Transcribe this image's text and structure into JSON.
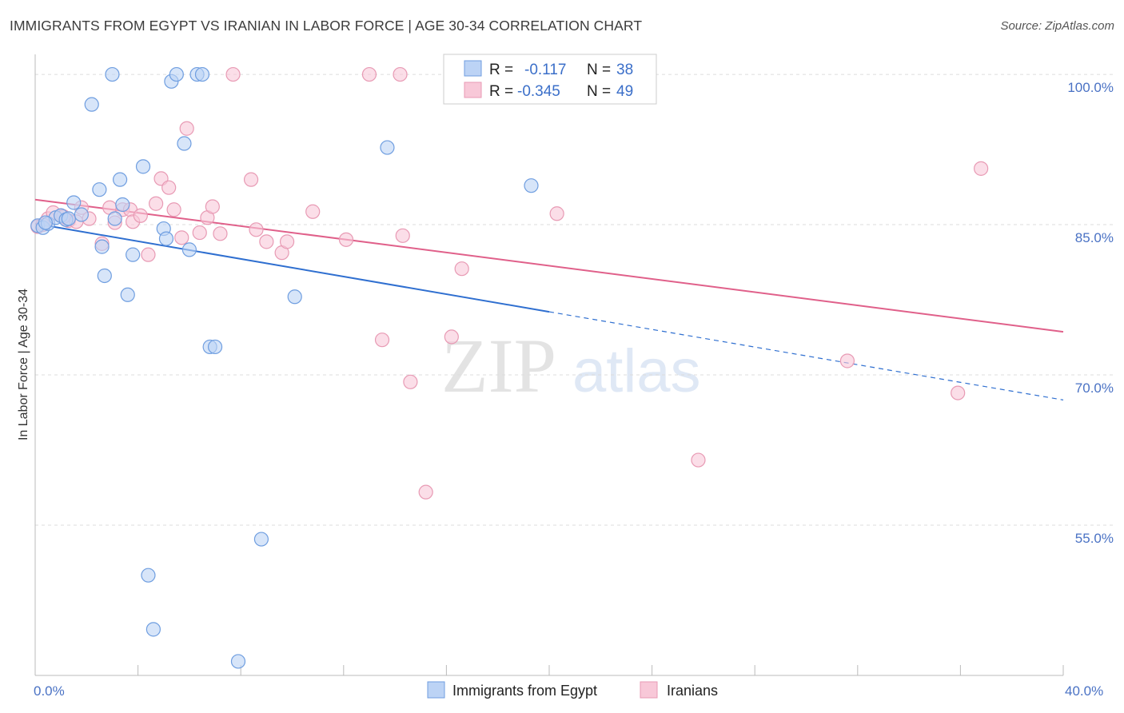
{
  "title": "IMMIGRANTS FROM EGYPT VS IRANIAN IN LABOR FORCE | AGE 30-34 CORRELATION CHART",
  "source": "Source: ZipAtlas.com",
  "watermark": {
    "zip": "ZIP",
    "atlas": "atlas"
  },
  "colors": {
    "egypt_fill": "#bcd3f5",
    "egypt_stroke": "#6f9ee0",
    "egypt_line": "#2f6fd0",
    "iran_fill": "#f8c8d8",
    "iran_stroke": "#e89ab4",
    "iran_line": "#e0608a",
    "grid": "#dcdcdc",
    "tick_label": "#4a72c4"
  },
  "legend": {
    "rows": [
      {
        "r_label": "R = ",
        "r_value": "-0.117",
        "n_label": "N = ",
        "n_value": "38"
      },
      {
        "r_label": "R = ",
        "r_value": "-0.345",
        "n_label": "N = ",
        "n_value": "49"
      }
    ]
  },
  "chart_data": {
    "type": "scatter",
    "title": "IMMIGRANTS FROM EGYPT VS IRANIAN IN LABOR FORCE | AGE 30-34 CORRELATION CHART",
    "xlabel": "",
    "ylabel": "In Labor Force | Age 30-34",
    "xlim": [
      0,
      40
    ],
    "ylim": [
      40,
      102
    ],
    "x_tick_labels": [
      "0.0%",
      "40.0%"
    ],
    "y_ticks": [
      100,
      85,
      70,
      55
    ],
    "y_tick_labels": [
      "100.0%",
      "85.0%",
      "70.0%",
      "55.0%"
    ],
    "legend_position": "top-center",
    "series": [
      {
        "name": "Immigrants from Egypt",
        "r": -0.117,
        "n": 38,
        "trend": {
          "x0": 0,
          "y0": 85.1,
          "x_solid_end": 20,
          "x1": 40,
          "y1": 67.5
        },
        "points": [
          [
            0.1,
            84.9
          ],
          [
            0.3,
            84.7
          ],
          [
            0.5,
            85.1
          ],
          [
            0.8,
            85.7
          ],
          [
            1.0,
            85.9
          ],
          [
            1.2,
            85.5
          ],
          [
            1.5,
            87.2
          ],
          [
            1.8,
            86.0
          ],
          [
            2.2,
            97.0
          ],
          [
            2.5,
            88.5
          ],
          [
            2.6,
            82.8
          ],
          [
            2.7,
            79.9
          ],
          [
            3.0,
            100.0
          ],
          [
            3.1,
            85.6
          ],
          [
            3.3,
            89.5
          ],
          [
            3.4,
            87.0
          ],
          [
            3.6,
            78.0
          ],
          [
            3.8,
            82.0
          ],
          [
            4.2,
            90.8
          ],
          [
            4.4,
            50.0
          ],
          [
            4.6,
            44.6
          ],
          [
            5.0,
            84.6
          ],
          [
            5.1,
            83.6
          ],
          [
            5.3,
            99.3
          ],
          [
            5.5,
            100.0
          ],
          [
            5.8,
            93.1
          ],
          [
            6.0,
            82.5
          ],
          [
            6.3,
            100.0
          ],
          [
            6.5,
            100.0
          ],
          [
            6.8,
            72.8
          ],
          [
            7.0,
            72.8
          ],
          [
            7.9,
            41.4
          ],
          [
            8.8,
            53.6
          ],
          [
            10.1,
            77.8
          ],
          [
            13.7,
            92.7
          ],
          [
            19.3,
            88.9
          ],
          [
            0.4,
            85.2
          ],
          [
            1.3,
            85.6
          ]
        ]
      },
      {
        "name": "Iranians",
        "r": -0.345,
        "n": 49,
        "trend": {
          "x0": 0,
          "y0": 87.5,
          "x1": 40,
          "y1": 74.3
        },
        "points": [
          [
            0.1,
            84.8
          ],
          [
            0.5,
            85.6
          ],
          [
            0.7,
            86.2
          ],
          [
            1.0,
            85.9
          ],
          [
            1.3,
            85.4
          ],
          [
            1.6,
            85.3
          ],
          [
            1.8,
            86.7
          ],
          [
            2.1,
            85.6
          ],
          [
            2.6,
            83.1
          ],
          [
            2.9,
            86.7
          ],
          [
            3.1,
            85.2
          ],
          [
            3.4,
            86.5
          ],
          [
            3.7,
            86.5
          ],
          [
            3.8,
            85.3
          ],
          [
            4.1,
            85.9
          ],
          [
            4.4,
            82.0
          ],
          [
            4.7,
            87.1
          ],
          [
            4.9,
            89.6
          ],
          [
            5.2,
            88.7
          ],
          [
            5.4,
            86.5
          ],
          [
            5.7,
            83.7
          ],
          [
            5.9,
            94.6
          ],
          [
            6.4,
            84.2
          ],
          [
            6.7,
            85.7
          ],
          [
            6.9,
            86.8
          ],
          [
            7.2,
            84.1
          ],
          [
            7.7,
            100.0
          ],
          [
            8.4,
            89.5
          ],
          [
            8.6,
            84.5
          ],
          [
            9.0,
            83.3
          ],
          [
            9.6,
            82.2
          ],
          [
            9.8,
            83.3
          ],
          [
            10.8,
            86.3
          ],
          [
            12.1,
            83.5
          ],
          [
            13.0,
            100.0
          ],
          [
            13.5,
            73.5
          ],
          [
            14.2,
            100.0
          ],
          [
            14.3,
            83.9
          ],
          [
            14.6,
            69.3
          ],
          [
            15.2,
            58.3
          ],
          [
            16.2,
            73.8
          ],
          [
            16.6,
            80.6
          ],
          [
            20.3,
            86.1
          ],
          [
            25.8,
            61.5
          ],
          [
            31.6,
            71.4
          ],
          [
            35.9,
            68.2
          ],
          [
            36.8,
            90.6
          ],
          [
            0.3,
            85.0
          ],
          [
            1.1,
            85.8
          ]
        ]
      }
    ]
  },
  "bottom_legend": [
    {
      "label": "Immigrants from Egypt"
    },
    {
      "label": "Iranians"
    }
  ]
}
